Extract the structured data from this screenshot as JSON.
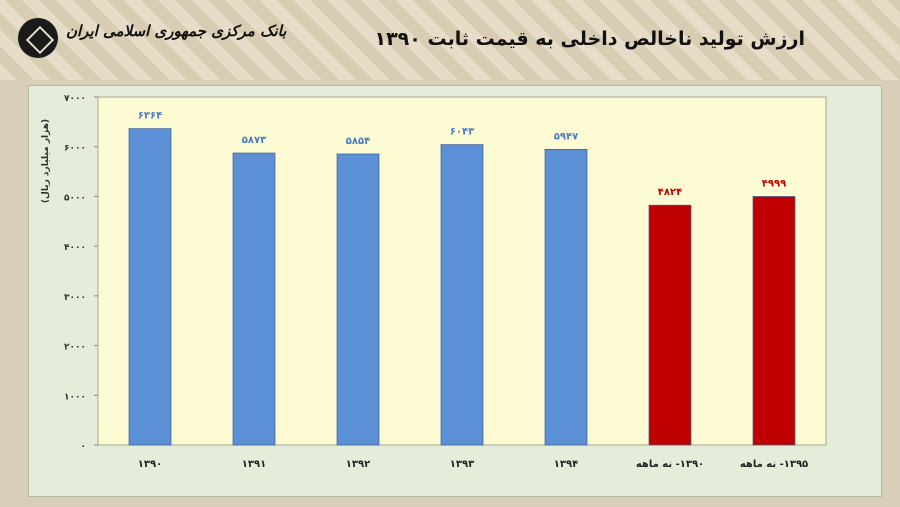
{
  "header": {
    "logo_text": "بانک مرکزی جمهوری اسلامی ایران",
    "title": "ارزش تولید ناخالص داخلی به قیمت ثابت ۱۳۹۰"
  },
  "chart_data": {
    "type": "bar",
    "title": "ارزش تولید ناخالص داخلی به قیمت ثابت ۱۳۹۰",
    "ylabel": "(هزار میلیارد ریال)",
    "xlabel": "",
    "ylim": [
      0,
      7000
    ],
    "yticks": [
      0,
      1000,
      2000,
      3000,
      4000,
      5000,
      6000,
      7000
    ],
    "ytick_labels": [
      "۰",
      "۱۰۰۰",
      "۲۰۰۰",
      "۳۰۰۰",
      "۴۰۰۰",
      "۵۰۰۰",
      "۶۰۰۰",
      "۷۰۰۰"
    ],
    "categories": [
      "۱۳۹۰",
      "۱۳۹۱",
      "۱۳۹۲",
      "۱۳۹۳",
      "۱۳۹۴",
      "۱۳۹۰- نه ماهه",
      "۱۳۹۵- نه ماهه"
    ],
    "values": [
      6364,
      5873,
      5854,
      6043,
      5947,
      4824,
      4999
    ],
    "value_labels": [
      "۶۳۶۴",
      "۵۸۷۳",
      "۵۸۵۴",
      "۶۰۴۳",
      "۵۹۴۷",
      "۴۸۲۴",
      "۴۹۹۹"
    ],
    "bar_colors": [
      "#5b8fd6",
      "#5b8fd6",
      "#5b8fd6",
      "#5b8fd6",
      "#5b8fd6",
      "#c00000",
      "#c00000"
    ],
    "label_colors": [
      "#4a7cc4",
      "#4a7cc4",
      "#4a7cc4",
      "#4a7cc4",
      "#4a7cc4",
      "#c00000",
      "#c00000"
    ],
    "plot_background": "#fdfbd3",
    "grid": false
  }
}
